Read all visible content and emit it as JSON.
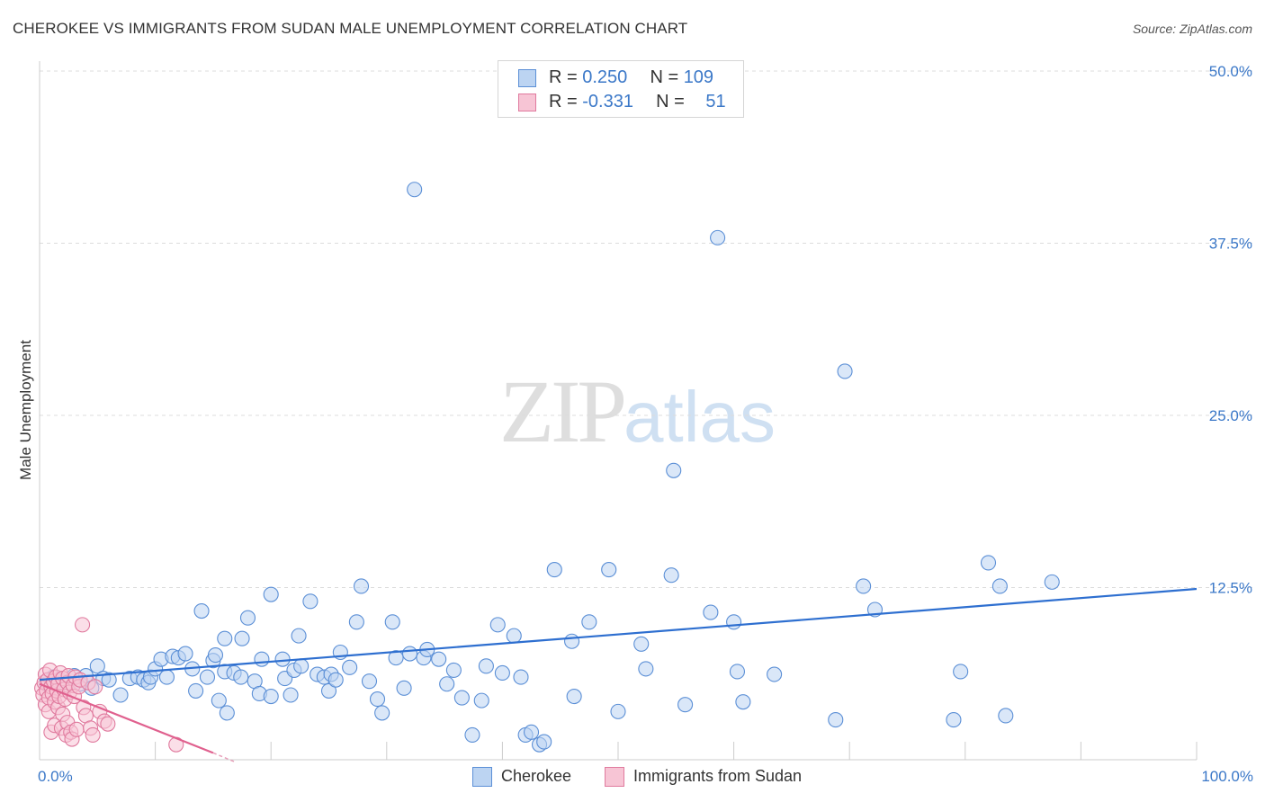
{
  "title": "CHEROKEE VS IMMIGRANTS FROM SUDAN MALE UNEMPLOYMENT CORRELATION CHART",
  "source": "Source: ZipAtlas.com",
  "watermark": {
    "zip": "ZIP",
    "atlas": "atlas"
  },
  "legend": {
    "rows": [
      {
        "r_label": "R = ",
        "r_value": "0.250",
        "n_label": "N = ",
        "n_value": "109",
        "color": "#5b8fd6",
        "fill": "#bcd4f2"
      },
      {
        "r_label": "R = ",
        "r_value": "-0.331",
        "n_label": "N = ",
        "n_value": "51",
        "color": "#e07a9e",
        "fill": "#f7c5d5"
      }
    ]
  },
  "bottom_legend": [
    {
      "label": "Cherokee",
      "color": "#5b8fd6",
      "fill": "#bcd4f2"
    },
    {
      "label": "Immigrants from Sudan",
      "color": "#e07a9e",
      "fill": "#f7c5d5"
    }
  ],
  "chart_data": {
    "type": "scatter",
    "title": "CHEROKEE VS IMMIGRANTS FROM SUDAN MALE UNEMPLOYMENT CORRELATION CHART",
    "xlabel": "",
    "ylabel": "Male Unemployment",
    "xlim": [
      0,
      100
    ],
    "ylim": [
      0,
      50
    ],
    "x_tick_labels": [
      "0.0%",
      "100.0%"
    ],
    "y_ticks": [
      12.5,
      25.0,
      37.5,
      50.0
    ],
    "y_tick_labels": [
      "12.5%",
      "25.0%",
      "37.5%",
      "50.0%"
    ],
    "grid": true,
    "series": [
      {
        "name": "Cherokee",
        "color": "#5b8fd6",
        "fill": "#bcd4f2",
        "trend": {
          "x": [
            0,
            100
          ],
          "y": [
            5.8,
            12.4
          ]
        },
        "points": [
          [
            0.6,
            5.5
          ],
          [
            1.2,
            6.0
          ],
          [
            1.8,
            5.8
          ],
          [
            2.4,
            5.6
          ],
          [
            3.0,
            6.1
          ],
          [
            3.5,
            5.5
          ],
          [
            4.0,
            6.1
          ],
          [
            4.5,
            5.2
          ],
          [
            5.0,
            6.8
          ],
          [
            5.5,
            5.9
          ],
          [
            6.0,
            5.8
          ],
          [
            7.0,
            4.7
          ],
          [
            7.8,
            5.9
          ],
          [
            8.5,
            6.0
          ],
          [
            9.0,
            5.8
          ],
          [
            9.4,
            5.6
          ],
          [
            9.6,
            6.0
          ],
          [
            10.0,
            6.6
          ],
          [
            10.5,
            7.3
          ],
          [
            11.0,
            6.0
          ],
          [
            11.5,
            7.5
          ],
          [
            12.0,
            7.4
          ],
          [
            12.6,
            7.7
          ],
          [
            13.2,
            6.6
          ],
          [
            13.5,
            5.0
          ],
          [
            14.0,
            10.8
          ],
          [
            14.5,
            6.0
          ],
          [
            15.0,
            7.2
          ],
          [
            15.2,
            7.6
          ],
          [
            15.5,
            4.3
          ],
          [
            16.0,
            8.8
          ],
          [
            16.0,
            6.4
          ],
          [
            16.2,
            3.4
          ],
          [
            16.8,
            6.3
          ],
          [
            17.4,
            6.0
          ],
          [
            17.5,
            8.8
          ],
          [
            18.0,
            10.3
          ],
          [
            18.6,
            5.7
          ],
          [
            19.0,
            4.8
          ],
          [
            19.2,
            7.3
          ],
          [
            20.0,
            12.0
          ],
          [
            20.0,
            4.6
          ],
          [
            21.0,
            7.3
          ],
          [
            21.2,
            5.9
          ],
          [
            21.7,
            4.7
          ],
          [
            22.0,
            6.5
          ],
          [
            22.4,
            9.0
          ],
          [
            22.6,
            6.8
          ],
          [
            23.4,
            11.5
          ],
          [
            24.0,
            6.2
          ],
          [
            24.6,
            6.0
          ],
          [
            25.0,
            5.0
          ],
          [
            25.2,
            6.2
          ],
          [
            25.6,
            5.8
          ],
          [
            26.0,
            7.8
          ],
          [
            26.8,
            6.7
          ],
          [
            27.4,
            10.0
          ],
          [
            27.8,
            12.6
          ],
          [
            28.5,
            5.7
          ],
          [
            29.2,
            4.4
          ],
          [
            29.6,
            3.4
          ],
          [
            30.5,
            10.0
          ],
          [
            30.8,
            7.4
          ],
          [
            31.5,
            5.2
          ],
          [
            32.0,
            7.7
          ],
          [
            32.4,
            41.4
          ],
          [
            33.2,
            7.4
          ],
          [
            33.5,
            8.0
          ],
          [
            34.5,
            7.3
          ],
          [
            35.2,
            5.5
          ],
          [
            35.8,
            6.5
          ],
          [
            36.5,
            4.5
          ],
          [
            37.4,
            1.8
          ],
          [
            38.2,
            4.3
          ],
          [
            38.6,
            6.8
          ],
          [
            39.6,
            9.8
          ],
          [
            40.0,
            6.3
          ],
          [
            41.0,
            9.0
          ],
          [
            41.6,
            6.0
          ],
          [
            42.0,
            1.8
          ],
          [
            42.5,
            2.0
          ],
          [
            43.2,
            1.1
          ],
          [
            43.6,
            1.3
          ],
          [
            44.5,
            13.8
          ],
          [
            46.0,
            8.6
          ],
          [
            46.2,
            4.6
          ],
          [
            47.5,
            10.0
          ],
          [
            49.2,
            13.8
          ],
          [
            50.0,
            3.5
          ],
          [
            52.0,
            8.4
          ],
          [
            52.4,
            6.6
          ],
          [
            54.6,
            13.4
          ],
          [
            54.8,
            21.0
          ],
          [
            55.8,
            4.0
          ],
          [
            58.0,
            10.7
          ],
          [
            58.6,
            37.9
          ],
          [
            60.0,
            10.0
          ],
          [
            60.3,
            6.4
          ],
          [
            60.8,
            4.2
          ],
          [
            63.5,
            6.2
          ],
          [
            68.8,
            2.9
          ],
          [
            69.6,
            28.2
          ],
          [
            71.2,
            12.6
          ],
          [
            72.2,
            10.9
          ],
          [
            79.0,
            2.9
          ],
          [
            79.6,
            6.4
          ],
          [
            82.0,
            14.3
          ],
          [
            83.0,
            12.6
          ],
          [
            83.5,
            3.2
          ],
          [
            87.5,
            12.9
          ]
        ]
      },
      {
        "name": "Immigrants from Sudan",
        "color": "#e07a9e",
        "fill": "#f7c5d5",
        "trend": {
          "x": [
            0,
            15
          ],
          "y": [
            5.5,
            0.5
          ]
        },
        "trend_dashed": {
          "x": [
            15,
            17
          ],
          "y": [
            0.5,
            -0.2
          ]
        },
        "points": [
          [
            0.2,
            5.2
          ],
          [
            0.3,
            4.7
          ],
          [
            0.4,
            5.6
          ],
          [
            0.5,
            4.0
          ],
          [
            0.5,
            6.2
          ],
          [
            0.6,
            5.0
          ],
          [
            0.7,
            5.8
          ],
          [
            0.8,
            4.5
          ],
          [
            0.8,
            3.5
          ],
          [
            0.9,
            6.5
          ],
          [
            1.0,
            5.3
          ],
          [
            1.0,
            2.0
          ],
          [
            1.1,
            4.8
          ],
          [
            1.2,
            5.7
          ],
          [
            1.3,
            4.2
          ],
          [
            1.3,
            2.5
          ],
          [
            1.4,
            6.0
          ],
          [
            1.5,
            5.0
          ],
          [
            1.6,
            3.8
          ],
          [
            1.6,
            5.5
          ],
          [
            1.7,
            4.6
          ],
          [
            1.8,
            6.3
          ],
          [
            1.9,
            2.3
          ],
          [
            2.0,
            5.9
          ],
          [
            2.0,
            3.3
          ],
          [
            2.1,
            5.1
          ],
          [
            2.2,
            4.4
          ],
          [
            2.3,
            1.8
          ],
          [
            2.4,
            5.6
          ],
          [
            2.4,
            2.7
          ],
          [
            2.5,
            6.1
          ],
          [
            2.6,
            4.9
          ],
          [
            2.7,
            2.0
          ],
          [
            2.8,
            1.5
          ],
          [
            2.9,
            5.4
          ],
          [
            3.0,
            4.6
          ],
          [
            3.1,
            6.0
          ],
          [
            3.2,
            2.2
          ],
          [
            3.4,
            5.3
          ],
          [
            3.5,
            5.8
          ],
          [
            3.8,
            3.8
          ],
          [
            4.0,
            3.2
          ],
          [
            4.2,
            5.6
          ],
          [
            4.4,
            2.3
          ],
          [
            4.6,
            1.8
          ],
          [
            3.7,
            9.8
          ],
          [
            4.8,
            5.3
          ],
          [
            5.2,
            3.5
          ],
          [
            5.6,
            2.8
          ],
          [
            5.9,
            2.6
          ],
          [
            11.8,
            1.1
          ]
        ]
      }
    ]
  }
}
